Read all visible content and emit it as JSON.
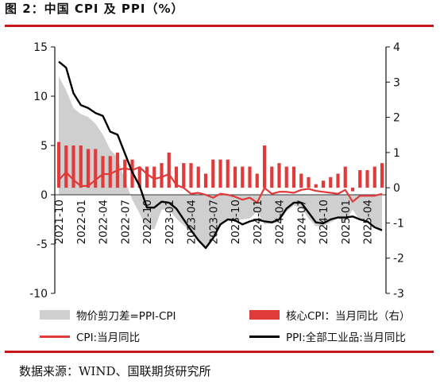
{
  "figure": {
    "title": "图 2：中国 CPI 及 PPI（%）",
    "source": "数据来源：WIND、国联期货研究所"
  },
  "colors": {
    "accent_red": "#c8161d",
    "bar_red": "#e03a3a",
    "cpi_line": "#e03a3a",
    "ppi_line": "#000000",
    "scissor_area": "#cfcfcf"
  },
  "chart_data": {
    "type": "line",
    "x_labels": [
      "2021-10",
      "2022-01",
      "2022-04",
      "2022-07",
      "2022-10",
      "2023-01",
      "2023-04",
      "2023-07",
      "2023-10",
      "2024-01",
      "2024-04",
      "2024-07",
      "2024-10",
      "2025-01",
      "2025-04"
    ],
    "months": [
      "2021-10",
      "2021-11",
      "2021-12",
      "2022-01",
      "2022-02",
      "2022-03",
      "2022-04",
      "2022-05",
      "2022-06",
      "2022-07",
      "2022-08",
      "2022-09",
      "2022-10",
      "2022-11",
      "2022-12",
      "2023-01",
      "2023-02",
      "2023-03",
      "2023-04",
      "2023-05",
      "2023-06",
      "2023-07",
      "2023-08",
      "2023-09",
      "2023-10",
      "2023-11",
      "2023-12",
      "2024-01",
      "2024-02",
      "2024-03",
      "2024-04",
      "2024-05",
      "2024-06",
      "2024-07",
      "2024-08",
      "2024-09",
      "2024-10",
      "2024-11",
      "2024-12",
      "2025-01",
      "2025-02",
      "2025-03",
      "2025-04",
      "2025-05",
      "2025-06"
    ],
    "y_left": {
      "lim": [
        -10,
        15
      ],
      "ticks": [
        -10,
        -5,
        0,
        5,
        10,
        15
      ]
    },
    "y_right": {
      "lim": [
        -3,
        4
      ],
      "ticks": [
        -3,
        -2,
        -1,
        0,
        1,
        2,
        3,
        4
      ]
    },
    "series": [
      {
        "name": "物价剪刀差=PPI-CPI",
        "type": "area",
        "axis": "left",
        "values": [
          12.0,
          10.6,
          8.8,
          8.2,
          7.9,
          7.2,
          6.1,
          4.6,
          3.8,
          1.5,
          -0.5,
          -1.9,
          -3.4,
          -3.5,
          -1.5,
          -1.5,
          -2.4,
          -3.1,
          -3.7,
          -4.8,
          -5.4,
          -4.4,
          -3.1,
          -2.6,
          -2.6,
          -2.5,
          -2.4,
          -1.7,
          -3.0,
          -2.9,
          -2.8,
          -1.7,
          -1.1,
          -1.3,
          -2.4,
          -3.2,
          -3.2,
          -2.8,
          -2.4,
          -2.8,
          -1.5,
          -2.6,
          -2.4,
          -3.2,
          -3.7
        ]
      },
      {
        "name": "核心CPI：当月同比（右）",
        "type": "bar",
        "axis": "right",
        "values": [
          1.3,
          1.2,
          1.2,
          1.2,
          1.1,
          1.1,
          0.9,
          0.9,
          1.0,
          0.8,
          0.8,
          0.6,
          0.6,
          0.6,
          0.7,
          1.0,
          0.6,
          0.7,
          0.7,
          0.6,
          0.4,
          0.8,
          0.8,
          0.8,
          0.6,
          0.6,
          0.6,
          0.4,
          1.2,
          0.6,
          0.7,
          0.6,
          0.6,
          0.4,
          0.3,
          0.1,
          0.2,
          0.3,
          0.4,
          0.6,
          -0.1,
          0.5,
          0.5,
          0.6,
          0.7
        ]
      },
      {
        "name": "CPI:当月同比",
        "type": "line",
        "axis": "left",
        "values": [
          1.5,
          2.3,
          1.5,
          0.9,
          0.9,
          1.5,
          2.1,
          2.1,
          2.5,
          2.7,
          2.5,
          2.8,
          2.1,
          1.6,
          1.8,
          2.1,
          1.0,
          0.7,
          0.1,
          0.2,
          0.0,
          -0.3,
          0.1,
          0.0,
          -0.2,
          -0.5,
          -0.3,
          -0.8,
          0.7,
          0.1,
          0.3,
          0.3,
          0.2,
          0.5,
          0.6,
          0.4,
          0.3,
          0.2,
          0.1,
          0.5,
          -0.7,
          -0.1,
          -0.1,
          -0.1,
          0.1
        ]
      },
      {
        "name": "PPI:全部工业品:当月同比",
        "type": "line",
        "axis": "left",
        "values": [
          13.5,
          12.9,
          10.3,
          9.1,
          8.8,
          8.3,
          8.0,
          6.4,
          6.1,
          4.2,
          2.3,
          0.9,
          -1.3,
          -1.3,
          -0.7,
          -0.8,
          -1.4,
          -2.5,
          -3.6,
          -4.6,
          -5.4,
          -4.4,
          -3.0,
          -2.5,
          -2.6,
          -3.0,
          -2.7,
          -2.5,
          -2.7,
          -2.8,
          -2.5,
          -1.4,
          -0.8,
          -0.8,
          -1.8,
          -2.8,
          -2.9,
          -2.5,
          -2.3,
          -2.3,
          -2.2,
          -2.5,
          -2.7,
          -3.3,
          -3.6
        ]
      }
    ],
    "legend": [
      "物价剪刀差=PPI-CPI",
      "核心CPI：当月同比（右）",
      "CPI:当月同比",
      "PPI:全部工业品:当月同比"
    ],
    "legend_position": "bottom",
    "grid": false
  }
}
